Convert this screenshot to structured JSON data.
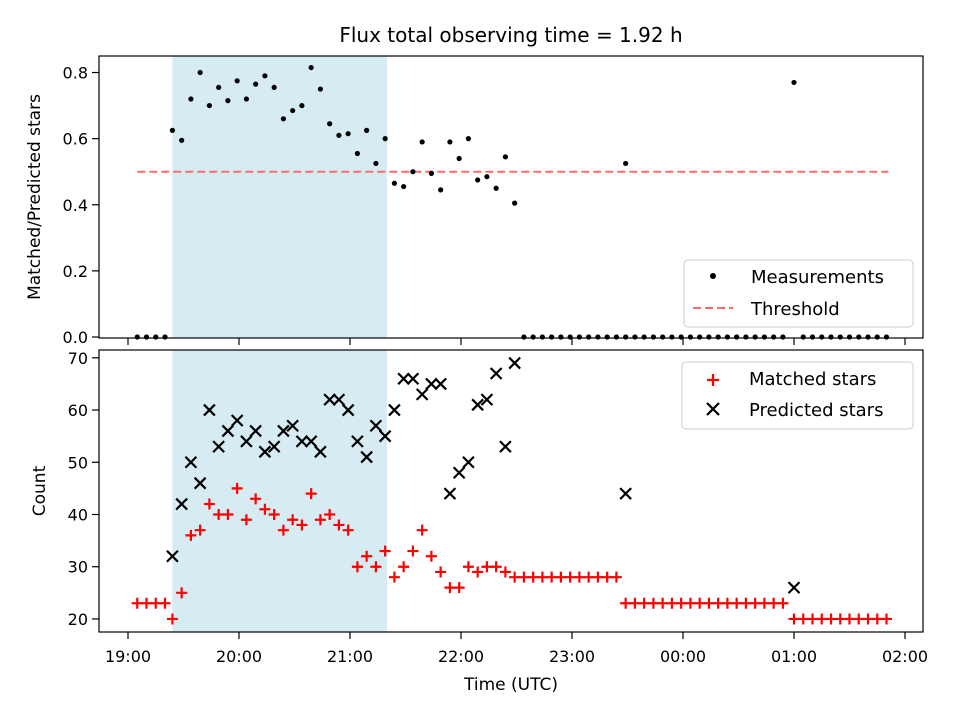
{
  "title": "Flux total observing time = 1.92 h",
  "colors": {
    "highlight": "#add8e6",
    "threshold": "#ff6b6b",
    "matched": "#ff0000",
    "predicted": "#000000",
    "measurement": "#000000"
  },
  "chart_data": [
    {
      "type": "scatter",
      "ylabel": "Matched/Predicted stars",
      "ylim": [
        0,
        0.85
      ],
      "yticks": [
        "0.0",
        "0.2",
        "0.4",
        "0.6",
        "0.8"
      ],
      "shaded_region": [
        "19:24",
        "21:20"
      ],
      "legend_position": "lower-right",
      "legend": {
        "measurements": "Measurements",
        "threshold": "Threshold"
      },
      "threshold": {
        "value": 0.5,
        "x_start": "19:05",
        "x_end": "01:51"
      },
      "series": [
        {
          "name": "Measurements",
          "points": [
            [
              "19:05",
              0
            ],
            [
              "19:10",
              0
            ],
            [
              "19:15",
              0
            ],
            [
              "19:20",
              0
            ],
            [
              "19:24",
              0.625
            ],
            [
              "19:29",
              0.595
            ],
            [
              "19:34",
              0.72
            ],
            [
              "19:39",
              0.8
            ],
            [
              "19:44",
              0.7
            ],
            [
              "19:49",
              0.755
            ],
            [
              "19:54",
              0.715
            ],
            [
              "19:59",
              0.775
            ],
            [
              "20:04",
              0.72
            ],
            [
              "20:09",
              0.765
            ],
            [
              "20:14",
              0.79
            ],
            [
              "20:19",
              0.755
            ],
            [
              "20:24",
              0.66
            ],
            [
              "20:29",
              0.685
            ],
            [
              "20:34",
              0.7
            ],
            [
              "20:39",
              0.815
            ],
            [
              "20:44",
              0.75
            ],
            [
              "20:49",
              0.645
            ],
            [
              "20:54",
              0.61
            ],
            [
              "20:59",
              0.615
            ],
            [
              "21:04",
              0.555
            ],
            [
              "21:09",
              0.625
            ],
            [
              "21:14",
              0.525
            ],
            [
              "21:19",
              0.6
            ],
            [
              "21:24",
              0.465
            ],
            [
              "21:29",
              0.455
            ],
            [
              "21:34",
              0.5
            ],
            [
              "21:39",
              0.59
            ],
            [
              "21:44",
              0.495
            ],
            [
              "21:49",
              0.445
            ],
            [
              "21:54",
              0.59
            ],
            [
              "21:59",
              0.54
            ],
            [
              "22:04",
              0.6
            ],
            [
              "22:09",
              0.475
            ],
            [
              "22:14",
              0.485
            ],
            [
              "22:19",
              0.45
            ],
            [
              "22:24",
              0.545
            ],
            [
              "22:29",
              0.405
            ],
            [
              "22:34",
              0
            ],
            [
              "22:39",
              0
            ],
            [
              "22:44",
              0
            ],
            [
              "22:49",
              0
            ],
            [
              "22:54",
              0
            ],
            [
              "22:59",
              0
            ],
            [
              "23:04",
              0
            ],
            [
              "23:09",
              0
            ],
            [
              "23:14",
              0
            ],
            [
              "23:19",
              0
            ],
            [
              "23:24",
              0
            ],
            [
              "23:29",
              0
            ],
            [
              "23:29",
              0.525
            ],
            [
              "23:34",
              0
            ],
            [
              "23:39",
              0
            ],
            [
              "23:44",
              0
            ],
            [
              "23:49",
              0
            ],
            [
              "23:54",
              0
            ],
            [
              "23:59",
              0
            ],
            [
              "00:04",
              0
            ],
            [
              "00:09",
              0
            ],
            [
              "00:14",
              0
            ],
            [
              "00:19",
              0
            ],
            [
              "00:24",
              0
            ],
            [
              "00:29",
              0
            ],
            [
              "00:34",
              0
            ],
            [
              "00:39",
              0
            ],
            [
              "00:44",
              0
            ],
            [
              "00:49",
              0
            ],
            [
              "00:54",
              0
            ],
            [
              "01:00",
              0.77
            ],
            [
              "01:05",
              0
            ],
            [
              "01:10",
              0
            ],
            [
              "01:15",
              0
            ],
            [
              "01:20",
              0
            ],
            [
              "01:25",
              0
            ],
            [
              "01:30",
              0
            ],
            [
              "01:35",
              0
            ],
            [
              "01:40",
              0
            ],
            [
              "01:45",
              0
            ],
            [
              "01:50",
              0
            ]
          ]
        }
      ]
    },
    {
      "type": "scatter",
      "xlabel": "Time (UTC)",
      "ylabel": "Count",
      "ylim": [
        17.5,
        71.5
      ],
      "yticks": [
        "20",
        "30",
        "40",
        "50",
        "60",
        "70"
      ],
      "xticks": [
        "19:00",
        "20:00",
        "21:00",
        "22:00",
        "23:00",
        "00:00",
        "01:00",
        "02:00"
      ],
      "shaded_region": [
        "19:24",
        "21:20"
      ],
      "legend_position": "upper-right",
      "legend": {
        "matched": "Matched stars",
        "predicted": "Predicted stars"
      },
      "series": [
        {
          "name": "Matched stars",
          "points": [
            [
              "19:05",
              23
            ],
            [
              "19:10",
              23
            ],
            [
              "19:15",
              23
            ],
            [
              "19:20",
              23
            ],
            [
              "19:24",
              20
            ],
            [
              "19:29",
              25
            ],
            [
              "19:34",
              36
            ],
            [
              "19:39",
              37
            ],
            [
              "19:44",
              42
            ],
            [
              "19:49",
              40
            ],
            [
              "19:54",
              40
            ],
            [
              "19:59",
              45
            ],
            [
              "20:04",
              39
            ],
            [
              "20:09",
              43
            ],
            [
              "20:14",
              41
            ],
            [
              "20:19",
              40
            ],
            [
              "20:24",
              37
            ],
            [
              "20:29",
              39
            ],
            [
              "20:34",
              38
            ],
            [
              "20:39",
              44
            ],
            [
              "20:44",
              39
            ],
            [
              "20:49",
              40
            ],
            [
              "20:54",
              38
            ],
            [
              "20:59",
              37
            ],
            [
              "21:04",
              30
            ],
            [
              "21:09",
              32
            ],
            [
              "21:14",
              30
            ],
            [
              "21:19",
              33
            ],
            [
              "21:24",
              28
            ],
            [
              "21:29",
              30
            ],
            [
              "21:34",
              33
            ],
            [
              "21:39",
              37
            ],
            [
              "21:44",
              32
            ],
            [
              "21:49",
              29
            ],
            [
              "21:54",
              26
            ],
            [
              "21:59",
              26
            ],
            [
              "22:04",
              30
            ],
            [
              "22:09",
              29
            ],
            [
              "22:14",
              30
            ],
            [
              "22:19",
              30
            ],
            [
              "22:24",
              29
            ],
            [
              "22:29",
              28
            ],
            [
              "22:34",
              28
            ],
            [
              "22:39",
              28
            ],
            [
              "22:44",
              28
            ],
            [
              "22:49",
              28
            ],
            [
              "22:54",
              28
            ],
            [
              "22:59",
              28
            ],
            [
              "23:04",
              28
            ],
            [
              "23:09",
              28
            ],
            [
              "23:14",
              28
            ],
            [
              "23:19",
              28
            ],
            [
              "23:24",
              28
            ],
            [
              "23:29",
              23
            ],
            [
              "23:34",
              23
            ],
            [
              "23:39",
              23
            ],
            [
              "23:44",
              23
            ],
            [
              "23:49",
              23
            ],
            [
              "23:54",
              23
            ],
            [
              "23:59",
              23
            ],
            [
              "00:04",
              23
            ],
            [
              "00:09",
              23
            ],
            [
              "00:14",
              23
            ],
            [
              "00:19",
              23
            ],
            [
              "00:24",
              23
            ],
            [
              "00:29",
              23
            ],
            [
              "00:34",
              23
            ],
            [
              "00:39",
              23
            ],
            [
              "00:44",
              23
            ],
            [
              "00:49",
              23
            ],
            [
              "00:54",
              23
            ],
            [
              "01:00",
              20
            ],
            [
              "01:05",
              20
            ],
            [
              "01:10",
              20
            ],
            [
              "01:15",
              20
            ],
            [
              "01:20",
              20
            ],
            [
              "01:25",
              20
            ],
            [
              "01:30",
              20
            ],
            [
              "01:35",
              20
            ],
            [
              "01:40",
              20
            ],
            [
              "01:45",
              20
            ],
            [
              "01:50",
              20
            ]
          ]
        },
        {
          "name": "Predicted stars",
          "points": [
            [
              "19:24",
              32
            ],
            [
              "19:29",
              42
            ],
            [
              "19:34",
              50
            ],
            [
              "19:39",
              46
            ],
            [
              "19:44",
              60
            ],
            [
              "19:49",
              53
            ],
            [
              "19:54",
              56
            ],
            [
              "19:59",
              58
            ],
            [
              "20:04",
              54
            ],
            [
              "20:09",
              56
            ],
            [
              "20:14",
              52
            ],
            [
              "20:19",
              53
            ],
            [
              "20:24",
              56
            ],
            [
              "20:29",
              57
            ],
            [
              "20:34",
              54
            ],
            [
              "20:39",
              54
            ],
            [
              "20:44",
              52
            ],
            [
              "20:49",
              62
            ],
            [
              "20:54",
              62
            ],
            [
              "20:59",
              60
            ],
            [
              "21:04",
              54
            ],
            [
              "21:09",
              51
            ],
            [
              "21:14",
              57
            ],
            [
              "21:19",
              55
            ],
            [
              "21:24",
              60
            ],
            [
              "21:29",
              66
            ],
            [
              "21:34",
              66
            ],
            [
              "21:39",
              63
            ],
            [
              "21:44",
              65
            ],
            [
              "21:49",
              65
            ],
            [
              "21:54",
              44
            ],
            [
              "21:59",
              48
            ],
            [
              "22:04",
              50
            ],
            [
              "22:09",
              61
            ],
            [
              "22:14",
              62
            ],
            [
              "22:19",
              67
            ],
            [
              "22:24",
              53
            ],
            [
              "22:29",
              69
            ],
            [
              "23:29",
              44
            ],
            [
              "01:00",
              26
            ]
          ]
        }
      ]
    }
  ]
}
